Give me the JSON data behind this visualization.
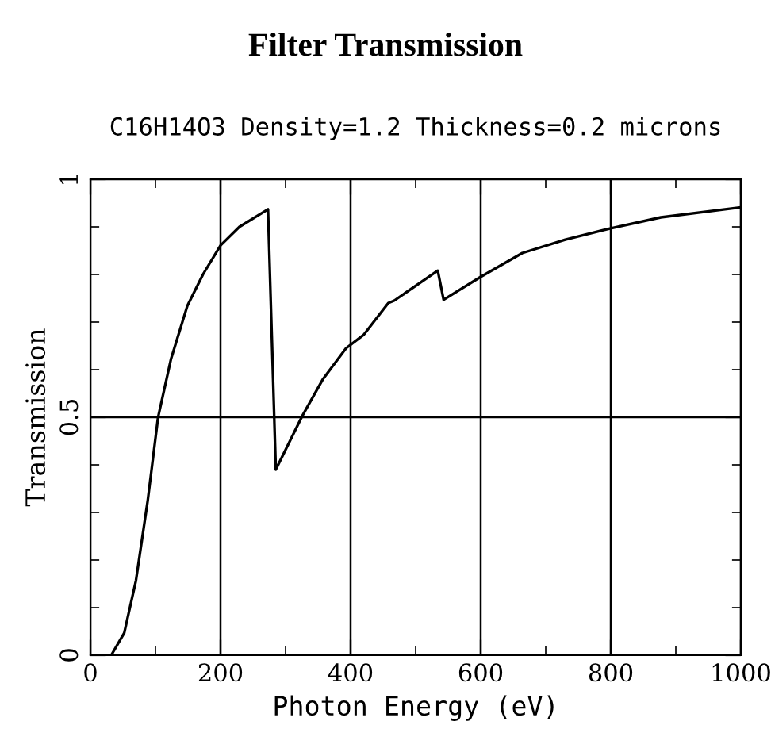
{
  "chart_data": {
    "type": "line",
    "title": "Filter Transmission",
    "subtitle": "C16H14O3 Density=1.2 Thickness=0.2 microns",
    "xlabel": "Photon Energy (eV)",
    "ylabel": "Transmission",
    "series": [
      {
        "color": "#000000",
        "x": [
          30,
          32,
          52,
          70,
          88,
          104,
          124,
          149,
          173,
          200,
          229,
          273,
          285,
          325,
          357,
          393,
          420,
          458,
          467,
          534,
          543,
          600,
          664,
          730,
          800,
          877,
          1000
        ],
        "values": [
          0,
          0,
          0.047,
          0.157,
          0.324,
          0.5,
          0.623,
          0.734,
          0.8,
          0.861,
          0.9,
          0.937,
          0.39,
          0.501,
          0.579,
          0.645,
          0.673,
          0.74,
          0.745,
          0.808,
          0.747,
          0.795,
          0.845,
          0.873,
          0.897,
          0.92,
          0.941
        ]
      }
    ],
    "xlim": [
      0,
      1000
    ],
    "ylim": [
      0,
      1
    ],
    "xticks": [
      0,
      200,
      400,
      600,
      800,
      1000
    ],
    "yticks": [
      0,
      0.5,
      1
    ],
    "grid": true,
    "marker": "none",
    "line_style": "solid"
  }
}
